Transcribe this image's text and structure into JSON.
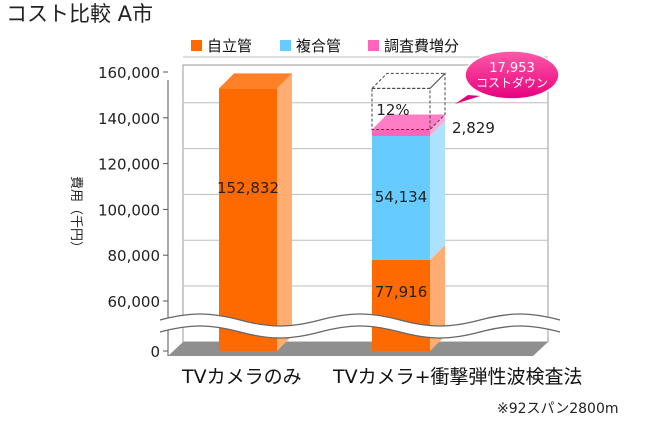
{
  "chart_data": {
    "type": "bar",
    "stacked": true,
    "title": "コスト比較 A市",
    "ylabel": "費用（千円）",
    "ylim": [
      0,
      160000
    ],
    "axis_break": true,
    "y_ticks": [
      0,
      60000,
      80000,
      100000,
      120000,
      140000,
      160000
    ],
    "y_tick_labels": [
      "0",
      "60,000",
      "80,000",
      "100,000",
      "120,000",
      "140,000",
      "160,000"
    ],
    "categories": [
      "TVカメラのみ",
      "TVカメラ+衝撃弾性波検査法"
    ],
    "series": [
      {
        "name": "自立管",
        "color": "#ff6a00",
        "values": [
          152832,
          77916
        ],
        "labels": [
          "152,832",
          "77,916"
        ]
      },
      {
        "name": "複合管",
        "color": "#66ccff",
        "values": [
          0,
          54134
        ],
        "labels": [
          "",
          "54,134"
        ]
      },
      {
        "name": "調査費増分",
        "color": "#ff66bb",
        "values": [
          0,
          2829
        ],
        "labels": [
          "",
          "2,829"
        ]
      }
    ],
    "annotations": {
      "reduction_percent": "12%",
      "reduction_amount": "17,953",
      "reduction_text": "コストダウン"
    },
    "note": "※92スパン2800m",
    "legend_position": "top",
    "grid": true
  }
}
